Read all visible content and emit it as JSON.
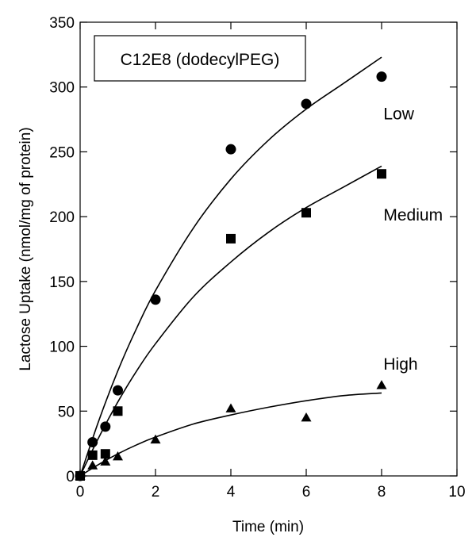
{
  "chart_data": {
    "type": "scatter",
    "title": "",
    "legend_box_text": "C12E8 (dodecylPEG)",
    "xlabel": "Time (min)",
    "ylabel": "Lactose Uptake (nmol/mg of protein)",
    "xlim": [
      0,
      10
    ],
    "ylim": [
      0,
      350
    ],
    "x_ticks": [
      0,
      2,
      4,
      6,
      8,
      10
    ],
    "y_ticks": [
      0,
      50,
      100,
      150,
      200,
      250,
      300,
      350
    ],
    "grid": false,
    "series": [
      {
        "name": "Low",
        "marker": "circle",
        "points": [
          [
            0,
            0
          ],
          [
            0.33,
            26
          ],
          [
            0.67,
            38
          ],
          [
            1,
            66
          ],
          [
            2,
            136
          ],
          [
            4,
            252
          ],
          [
            6,
            287
          ],
          [
            8,
            308
          ]
        ],
        "fit_curve": [
          [
            0,
            0
          ],
          [
            0.5,
            43
          ],
          [
            1,
            81
          ],
          [
            1.5,
            114
          ],
          [
            2,
            143
          ],
          [
            3,
            191
          ],
          [
            4,
            229
          ],
          [
            5,
            259
          ],
          [
            6,
            283
          ],
          [
            7,
            303
          ],
          [
            8,
            323
          ]
        ]
      },
      {
        "name": "Medium",
        "marker": "square",
        "points": [
          [
            0,
            0
          ],
          [
            0.33,
            16
          ],
          [
            0.67,
            17
          ],
          [
            1,
            50
          ],
          [
            4,
            183
          ],
          [
            6,
            203
          ],
          [
            8,
            233
          ]
        ],
        "fit_curve": [
          [
            0,
            0
          ],
          [
            0.5,
            30
          ],
          [
            1,
            57
          ],
          [
            1.5,
            81
          ],
          [
            2,
            102
          ],
          [
            3,
            138
          ],
          [
            4,
            165
          ],
          [
            5,
            188
          ],
          [
            6,
            207
          ],
          [
            7,
            223
          ],
          [
            8,
            239
          ]
        ]
      },
      {
        "name": "High",
        "marker": "triangle",
        "points": [
          [
            0,
            0
          ],
          [
            0.33,
            8
          ],
          [
            0.67,
            11
          ],
          [
            1,
            15
          ],
          [
            2,
            28
          ],
          [
            4,
            52
          ],
          [
            6,
            45
          ],
          [
            8,
            70
          ]
        ],
        "fit_curve": [
          [
            0,
            0
          ],
          [
            0.5,
            9
          ],
          [
            1,
            17
          ],
          [
            1.5,
            24
          ],
          [
            2,
            30
          ],
          [
            3,
            40
          ],
          [
            4,
            47
          ],
          [
            5,
            53
          ],
          [
            6,
            58
          ],
          [
            7,
            62
          ],
          [
            8,
            64
          ]
        ]
      }
    ],
    "series_labels": [
      {
        "series": "Low",
        "x": 8.05,
        "y": 275
      },
      {
        "series": "Medium",
        "x": 8.05,
        "y": 197
      },
      {
        "series": "High",
        "x": 8.05,
        "y": 82
      }
    ]
  }
}
